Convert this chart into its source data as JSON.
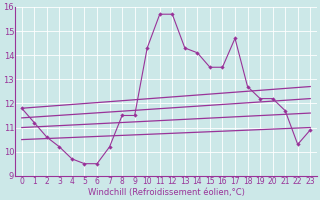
{
  "x": [
    0,
    1,
    2,
    3,
    4,
    5,
    6,
    7,
    8,
    9,
    10,
    11,
    12,
    13,
    14,
    15,
    16,
    17,
    18,
    19,
    20,
    21,
    22,
    23
  ],
  "line_main": [
    11.8,
    11.2,
    10.6,
    10.2,
    9.7,
    9.5,
    9.5,
    10.2,
    11.5,
    11.5,
    14.3,
    15.7,
    15.7,
    14.3,
    14.1,
    13.5,
    13.5,
    14.7,
    12.7,
    12.2,
    12.2,
    11.7,
    10.3,
    10.9
  ],
  "line1_x": [
    0,
    23
  ],
  "line1_y": [
    11.8,
    12.7
  ],
  "line2_x": [
    0,
    23
  ],
  "line2_y": [
    11.4,
    12.2
  ],
  "line3_x": [
    0,
    23
  ],
  "line3_y": [
    11.0,
    11.6
  ],
  "line4_x": [
    0,
    23
  ],
  "line4_y": [
    10.5,
    11.0
  ],
  "bg_color": "#cce8e8",
  "line_color": "#993399",
  "xlabel": "Windchill (Refroidissement éolien,°C)",
  "ylim": [
    9,
    16
  ],
  "xlim": [
    -0.5,
    23.5
  ],
  "yticks": [
    9,
    10,
    11,
    12,
    13,
    14,
    15,
    16
  ],
  "xticks": [
    0,
    1,
    2,
    3,
    4,
    5,
    6,
    7,
    8,
    9,
    10,
    11,
    12,
    13,
    14,
    15,
    16,
    17,
    18,
    19,
    20,
    21,
    22,
    23
  ],
  "tick_fontsize": 5.5,
  "xlabel_fontsize": 6.0
}
